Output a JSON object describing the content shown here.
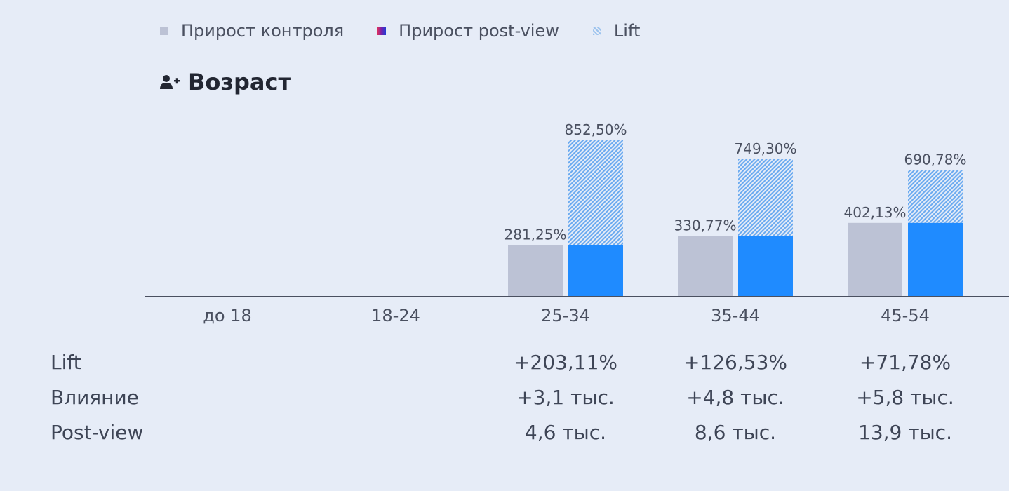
{
  "legend": [
    {
      "label": "Прирост контроля",
      "swatch": "control"
    },
    {
      "label": "Прирост post-view",
      "swatch": "postview"
    },
    {
      "label": "Lift",
      "swatch": "lift"
    }
  ],
  "section": {
    "title": "Возраст",
    "icon": "user-plus-icon"
  },
  "colors": {
    "control": "#bcc2d5",
    "postview": "#1f8bff",
    "lift_hatch": "#6aaaf0",
    "axis": "#4a5060",
    "background": "#e6ecf7"
  },
  "chart_data": {
    "type": "bar",
    "categories": [
      "до 18",
      "18-24",
      "25-34",
      "35-44",
      "45-54"
    ],
    "series": [
      {
        "name": "Прирост контроля",
        "values": [
          null,
          null,
          281.25,
          330.77,
          402.13
        ],
        "labels": [
          "",
          "",
          "281,25%",
          "330,77%",
          "402,13%"
        ]
      },
      {
        "name": "Прирост post-view",
        "values": [
          null,
          null,
          852.5,
          749.3,
          690.78
        ],
        "labels": [
          "",
          "",
          "852,50%",
          "749,30%",
          "690,78%"
        ],
        "stacked_components": {
          "solid": "Прирост контроля level",
          "hatched": "Lift"
        }
      }
    ],
    "ylim": [
      0,
      1000
    ],
    "grid": false,
    "legend_position": "top-left",
    "xlabel": "",
    "ylabel": ""
  },
  "stats": {
    "rows": [
      {
        "label": "Lift",
        "values": [
          "",
          "",
          "+203,11%",
          "+126,53%",
          "+71,78%"
        ]
      },
      {
        "label": "Влияние",
        "values": [
          "",
          "",
          "+3,1 тыс.",
          "+4,8 тыс.",
          "+5,8 тыс."
        ]
      },
      {
        "label": "Post-view",
        "values": [
          "",
          "",
          "4,6 тыс.",
          "8,6 тыс.",
          "13,9 тыс."
        ]
      }
    ]
  }
}
